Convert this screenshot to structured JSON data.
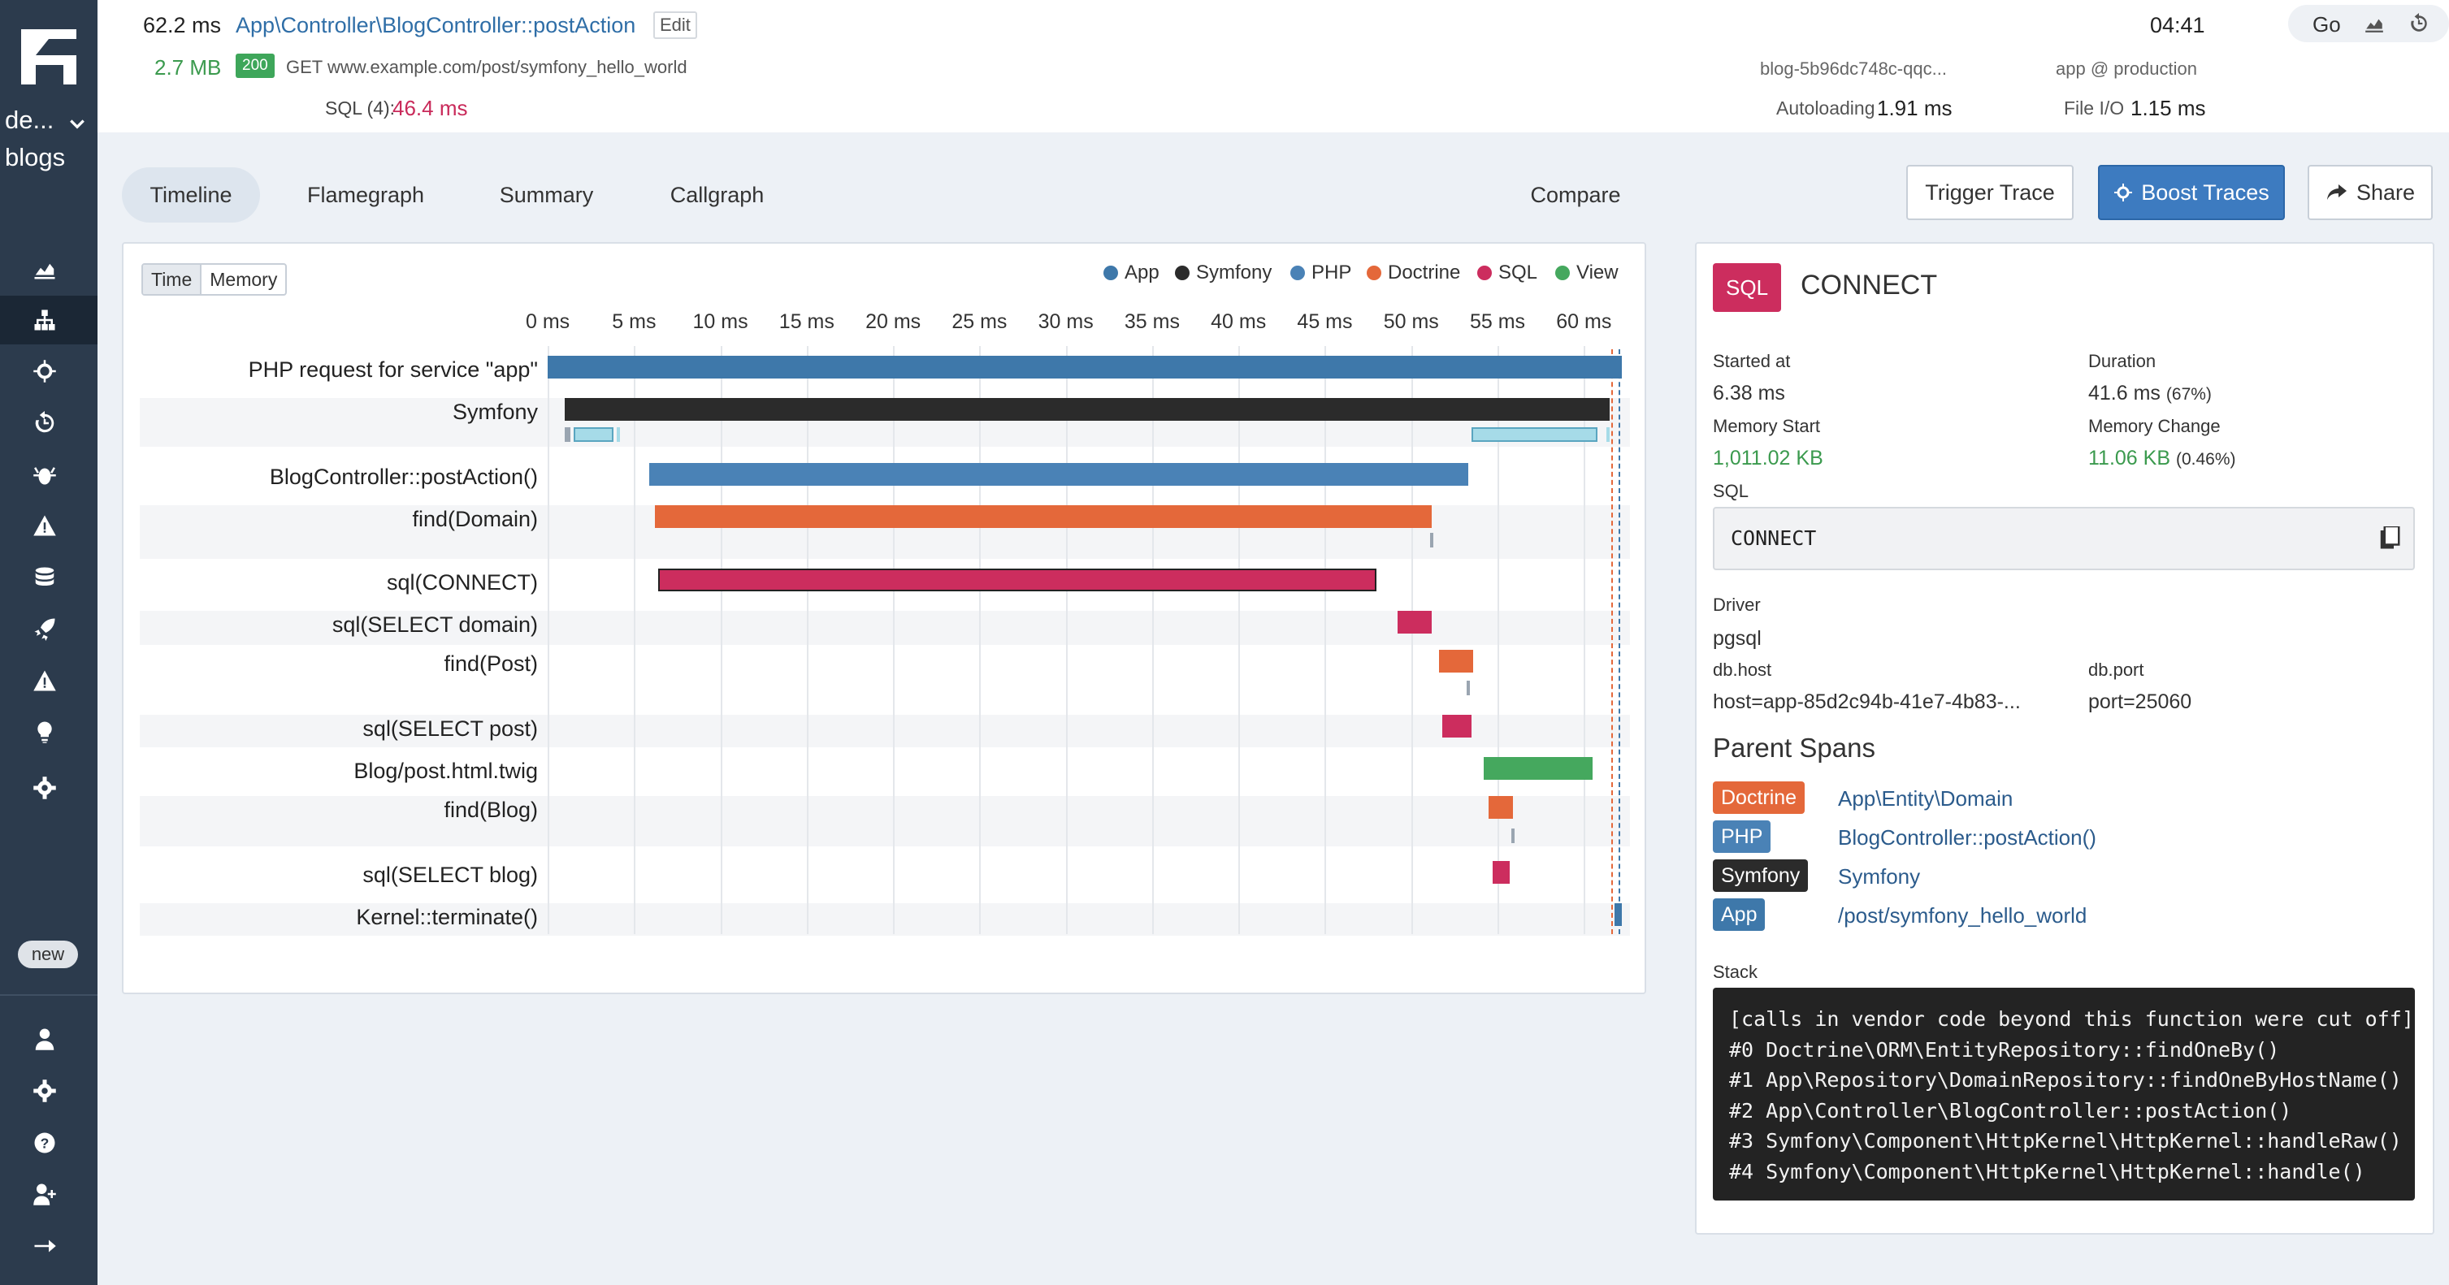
{
  "colors": {
    "app": "#3e78aa",
    "symfony": "#2b2b2b",
    "php": "#4a82b6",
    "doctrine": "#e4683a",
    "sql": "#cc2d5e",
    "view": "#45a85e",
    "twig_light": "#a6dbe8"
  },
  "sidebar": {
    "project": "de...",
    "app": "blogs",
    "new_badge": "new",
    "icons": [
      "stats-icon",
      "timeline-icon",
      "recommendations-icon",
      "history-icon",
      "bug-icon",
      "warning-icon",
      "database-icon",
      "deploy-icon",
      "alert-icon",
      "bulb-icon",
      "settings-icon",
      "user-icon",
      "gear-icon",
      "help-icon",
      "add-user-icon",
      "collapse-icon"
    ]
  },
  "header": {
    "duration": "62.2 ms",
    "controller": "App\\Controller\\BlogController::postAction",
    "edit": "Edit",
    "memory": "2.7 MB",
    "status": "200",
    "request": "GET www.example.com/post/symfony_hello_world",
    "sql_label": "SQL (4):",
    "sql_time": "46.4 ms",
    "time": "04:41",
    "go": "Go",
    "host": "blog-5b96dc748c-qqc...",
    "env": "app @ production",
    "autoload_label": "Autoloading",
    "autoload": "1.91 ms",
    "fileio_label": "File I/O",
    "fileio": "1.15 ms"
  },
  "tabs": [
    "Timeline",
    "Flamegraph",
    "Summary",
    "Callgraph"
  ],
  "compare": "Compare",
  "buttons": {
    "trigger": "Trigger Trace",
    "boost": "Boost Traces",
    "share": "Share"
  },
  "toggle": {
    "time": "Time",
    "memory": "Memory"
  },
  "legend": [
    {
      "name": "App",
      "color": "#3e78aa"
    },
    {
      "name": "Symfony",
      "color": "#2b2b2b"
    },
    {
      "name": "PHP",
      "color": "#4a82b6"
    },
    {
      "name": "Doctrine",
      "color": "#e4683a"
    },
    {
      "name": "SQL",
      "color": "#cc2d5e"
    },
    {
      "name": "View",
      "color": "#45a85e"
    }
  ],
  "chart_data": {
    "type": "timeline",
    "xlabel": "",
    "ylabel": "",
    "xlim": [
      0,
      62.2
    ],
    "ticks": [
      "0 ms",
      "5 ms",
      "10 ms",
      "15 ms",
      "20 ms",
      "25 ms",
      "30 ms",
      "35 ms",
      "40 ms",
      "45 ms",
      "50 ms",
      "55 ms",
      "60 ms"
    ],
    "rows": [
      {
        "label": "PHP request for service \"app\"",
        "start": 0,
        "end": 62.2,
        "cat": "app"
      },
      {
        "label": "Symfony",
        "start": 1.0,
        "end": 61.5,
        "cat": "symfony"
      },
      {
        "label": "BlogController::postAction()",
        "start": 5.9,
        "end": 53.3,
        "cat": "php"
      },
      {
        "label": "find(Domain)",
        "start": 6.2,
        "end": 51.2,
        "cat": "doctrine"
      },
      {
        "label": "sql(CONNECT)",
        "start": 6.38,
        "end": 47.98,
        "cat": "sql",
        "selected": true
      },
      {
        "label": "sql(SELECT domain)",
        "start": 49.2,
        "end": 51.2,
        "cat": "sql"
      },
      {
        "label": "find(Post)",
        "start": 51.6,
        "end": 53.6,
        "cat": "doctrine"
      },
      {
        "label": "sql(SELECT post)",
        "start": 51.8,
        "end": 53.5,
        "cat": "sql"
      },
      {
        "label": "Blog/post.html.twig",
        "start": 54.2,
        "end": 60.5,
        "cat": "view"
      },
      {
        "label": "find(Blog)",
        "start": 54.5,
        "end": 55.9,
        "cat": "doctrine"
      },
      {
        "label": "sql(SELECT blog)",
        "start": 54.7,
        "end": 55.7,
        "cat": "sql"
      },
      {
        "label": "Kernel::terminate()",
        "start": 61.8,
        "end": 62.2,
        "cat": "app"
      }
    ]
  },
  "detail": {
    "badge": "SQL",
    "title": "CONNECT",
    "started_label": "Started at",
    "started": "6.38 ms",
    "duration_label": "Duration",
    "duration": "41.6 ms",
    "duration_pct": "(67%)",
    "mem_start_label": "Memory Start",
    "mem_start": "1,011.02 KB",
    "mem_change_label": "Memory Change",
    "mem_change": "11.06 KB",
    "mem_change_pct": "(0.46%)",
    "sql_label": "SQL",
    "sql": "CONNECT",
    "driver_label": "Driver",
    "driver": "pgsql",
    "dbhost_label": "db.host",
    "dbhost": "host=app-85d2c94b-41e7-4b83-...",
    "dbport_label": "db.port",
    "dbport": "port=25060",
    "parents_title": "Parent Spans",
    "parents": [
      {
        "badge": "Doctrine",
        "color": "#e4683a",
        "name": "App\\Entity\\Domain"
      },
      {
        "badge": "PHP",
        "color": "#4a82b6",
        "name": "BlogController::postAction()"
      },
      {
        "badge": "Symfony",
        "color": "#2b2b2b",
        "name": "Symfony"
      },
      {
        "badge": "App",
        "color": "#3e78aa",
        "name": "/post/symfony_hello_world"
      }
    ],
    "stack_label": "Stack",
    "stack": [
      "[calls in vendor code beyond this function were cut off]",
      "#0 Doctrine\\ORM\\EntityRepository::findOneBy()",
      "#1 App\\Repository\\DomainRepository::findOneByHostName()",
      "#2 App\\Controller\\BlogController::postAction()",
      "#3 Symfony\\Component\\HttpKernel\\HttpKernel::handleRaw()",
      "#4 Symfony\\Component\\HttpKernel\\HttpKernel::handle()"
    ]
  }
}
